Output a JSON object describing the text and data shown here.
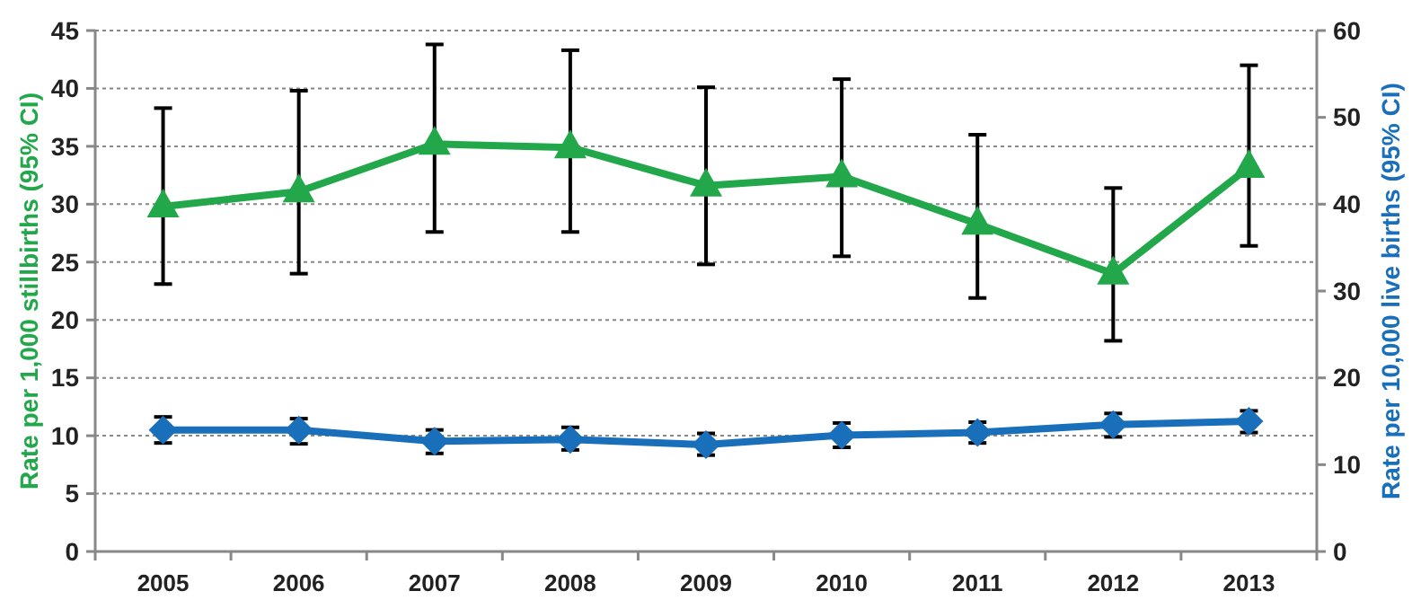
{
  "chart_data": {
    "type": "line",
    "ylabel": "Rate per 1,000 stillbirths (95% CI)",
    "y2label": "Rate per 10,000 live births (95% CI)",
    "categories": [
      "2005",
      "2006",
      "2007",
      "2008",
      "2009",
      "2010",
      "2011",
      "2012",
      "2013"
    ],
    "series": [
      {
        "color": "#22a84a",
        "marker": "triangle",
        "values": [
          29.8,
          31.1,
          35.2,
          34.9,
          31.6,
          32.4,
          28.3,
          24.0,
          33.2
        ],
        "errors": [
          [
            23.1,
            38.3
          ],
          [
            24.0,
            39.8
          ],
          [
            27.6,
            43.8
          ],
          [
            27.6,
            43.3
          ],
          [
            24.8,
            40.1
          ],
          [
            25.5,
            40.8
          ],
          [
            21.9,
            36.0
          ],
          [
            18.2,
            31.4
          ],
          [
            26.4,
            42.0
          ]
        ]
      },
      {
        "color": "#1a6fbb",
        "marker": "diamond",
        "axis": "y2",
        "values": [
          14.0,
          14.0,
          12.7,
          12.9,
          12.3,
          13.4,
          13.7,
          14.6,
          15.0
        ],
        "errors": [
          [
            12.5,
            15.5
          ],
          [
            12.4,
            15.3
          ],
          [
            11.3,
            14.0
          ],
          [
            11.7,
            14.3
          ],
          [
            11.1,
            13.6
          ],
          [
            12.0,
            14.8
          ],
          [
            12.5,
            14.9
          ],
          [
            13.2,
            15.9
          ],
          [
            13.7,
            16.2
          ]
        ]
      }
    ],
    "ylim": [
      0,
      45
    ],
    "yticks": [
      0,
      5,
      10,
      15,
      20,
      25,
      30,
      35,
      40,
      45
    ],
    "y2lim": [
      0,
      60
    ],
    "y2ticks": [
      0,
      10,
      20,
      30,
      40,
      50,
      60
    ],
    "grid": "y",
    "line_style": "solid"
  }
}
